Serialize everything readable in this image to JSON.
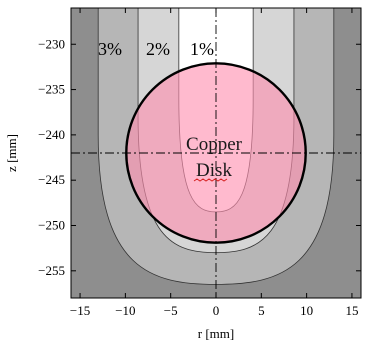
{
  "chart_data": {
    "type": "contour",
    "xlabel": "r [mm]",
    "ylabel": "z [mm]",
    "xlim": [
      -16,
      16
    ],
    "ylim": [
      -258,
      -226
    ],
    "x_ticks": [
      -15,
      -10,
      -5,
      0,
      5,
      10,
      15
    ],
    "y_ticks": [
      -230,
      -235,
      -240,
      -245,
      -250,
      -255
    ],
    "grid": false,
    "contour_levels": [
      {
        "label": "3%",
        "shade": "#8e8e8e"
      },
      {
        "label": "2%",
        "shade": "#b6b6b6"
      },
      {
        "label": "1%",
        "shade": "#d6d6d6"
      }
    ],
    "inner_region_shade": "#ffffff",
    "crosshair": {
      "r": 0,
      "z": -242
    },
    "disk": {
      "label_line1": "Copper",
      "label_line2": "Disk",
      "center_r": 0,
      "center_z": -242,
      "radius": 9.9,
      "fill": "#ff8fb0",
      "stroke": "#000000"
    }
  }
}
